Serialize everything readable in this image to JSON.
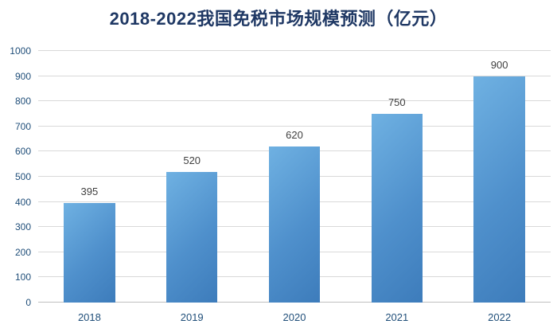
{
  "chart_data": {
    "type": "bar",
    "title": "2018-2022我国免税市场规模预测（亿元）",
    "categories": [
      "2018",
      "2019",
      "2020",
      "2021",
      "2022"
    ],
    "values": [
      395,
      520,
      620,
      750,
      900
    ],
    "value_labels": [
      "395",
      "520",
      "620",
      "750",
      "900"
    ],
    "xlabel": "",
    "ylabel": "",
    "ylim": [
      0,
      1000
    ],
    "ytick_step": 100,
    "ytick_labels": [
      "0",
      "100",
      "200",
      "300",
      "400",
      "500",
      "600",
      "700",
      "800",
      "900",
      "1000"
    ],
    "grid": "horizontal",
    "legend": "none"
  },
  "colors": {
    "bg": "#ffffff",
    "title_color": "#1f3864",
    "axis_label_color": "#1f4e79",
    "value_label_color": "#404040",
    "grid_color": "#d9d9d9",
    "axis_line_color": "#bfbfbf",
    "bar_top": "#6fb1e2",
    "bar_mid": "#4f90cc",
    "bar_bottom": "#3d7cbb"
  }
}
